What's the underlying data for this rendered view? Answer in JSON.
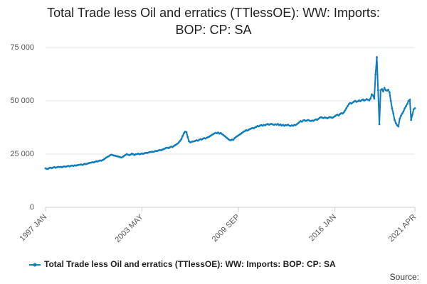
{
  "chart_data": {
    "type": "line",
    "title": "Total Trade less Oil and erratics (TTlessOE): WW: Imports: BOP: CP: SA",
    "source": "Source:",
    "categories": [
      "1997 JAN",
      null,
      null,
      null,
      null,
      null,
      null,
      null,
      null,
      null,
      null,
      null,
      null,
      null,
      null,
      null,
      null,
      null,
      null,
      null,
      null,
      null,
      null,
      null,
      null,
      null,
      null,
      null,
      null,
      null,
      null,
      null,
      null,
      null,
      null,
      null,
      null,
      null,
      null,
      null,
      null,
      null,
      null,
      null,
      null,
      null,
      null,
      null,
      null,
      null,
      null,
      null,
      null,
      null,
      null,
      null,
      null,
      null,
      null,
      null,
      null,
      null,
      null,
      null,
      null,
      null,
      null,
      null,
      null,
      null,
      null,
      null,
      null,
      null,
      null,
      null,
      "2003 MAY",
      null,
      null,
      null,
      null,
      null,
      null,
      null,
      null,
      null,
      null,
      null,
      null,
      null,
      null,
      null,
      null,
      null,
      null,
      null,
      null,
      null,
      null,
      null,
      null,
      null,
      null,
      null,
      null,
      null,
      null,
      null,
      null,
      null,
      null,
      null,
      null,
      null,
      null,
      null,
      null,
      null,
      null,
      null,
      null,
      null,
      null,
      null,
      null,
      null,
      null,
      null,
      null,
      null,
      null,
      null,
      null,
      null,
      null,
      null,
      null,
      null,
      null,
      null,
      null,
      null,
      null,
      null,
      null,
      null,
      null,
      null,
      null,
      null,
      null,
      null,
      "2009 SEP",
      null,
      null,
      null,
      null,
      null,
      null,
      null,
      null,
      null,
      null,
      null,
      null,
      null,
      null,
      null,
      null,
      null,
      null,
      null,
      null,
      null,
      null,
      null,
      null,
      null,
      null,
      null,
      null,
      null,
      null,
      null,
      null,
      null,
      null,
      null,
      null,
      null,
      null,
      null,
      null,
      null,
      null,
      null,
      null,
      null,
      null,
      null,
      null,
      null,
      null,
      null,
      null,
      null,
      null,
      null,
      null,
      null,
      null,
      null,
      null,
      null,
      null,
      null,
      null,
      null,
      null,
      null,
      null,
      null,
      null,
      null,
      null,
      null,
      null,
      null,
      "2016 JAN",
      null,
      null,
      null,
      null,
      null,
      null,
      null,
      null,
      null,
      null,
      null,
      null,
      null,
      null,
      null,
      null,
      null,
      null,
      null,
      null,
      null,
      null,
      null,
      null,
      null,
      null,
      null,
      null,
      null,
      null,
      null,
      null,
      null,
      null,
      null,
      null,
      null,
      null,
      null,
      null,
      null,
      null,
      null,
      null,
      null,
      null,
      null,
      null,
      null,
      null,
      null,
      null,
      null,
      null,
      null,
      null,
      null,
      null,
      null,
      null,
      null,
      null,
      "2021 APR"
    ],
    "series": [
      {
        "name": "Total Trade less Oil and erratics (TTlessOE): WW: Imports: BOP: CP: SA",
        "color": "#0e7dbd",
        "values": [
          18300,
          18100,
          18000,
          18500,
          18600,
          18400,
          18700,
          18900,
          18600,
          18800,
          19000,
          18900,
          19000,
          18800,
          19100,
          19200,
          19000,
          19300,
          19400,
          19200,
          19500,
          19600,
          19400,
          19700,
          19600,
          19800,
          19900,
          20000,
          20100,
          19900,
          20200,
          20400,
          20300,
          20500,
          20700,
          20900,
          21000,
          21200,
          21100,
          21400,
          21600,
          21500,
          21800,
          22000,
          21900,
          22200,
          22500,
          23000,
          23400,
          23800,
          24000,
          24500,
          24700,
          24500,
          24300,
          24200,
          24000,
          23900,
          23700,
          23500,
          23400,
          23800,
          24200,
          24600,
          25000,
          24700,
          24500,
          24800,
          25200,
          24900,
          24600,
          24900,
          25000,
          25200,
          24900,
          25100,
          25300,
          25100,
          25400,
          25600,
          25500,
          25700,
          25900,
          26000,
          26100,
          26000,
          26300,
          26500,
          26400,
          26700,
          26900,
          26800,
          27100,
          27300,
          27600,
          27900,
          28000,
          27800,
          28200,
          28500,
          28300,
          28800,
          29100,
          29500,
          29900,
          30500,
          31200,
          32000,
          33500,
          34800,
          35500,
          35300,
          33000,
          31000,
          30500,
          30700,
          30900,
          31000,
          31200,
          31500,
          31300,
          31700,
          32000,
          31800,
          32200,
          32500,
          32300,
          32700,
          32900,
          33200,
          33600,
          34000,
          34300,
          34700,
          35000,
          34800,
          35100,
          34600,
          34900,
          34400,
          34000,
          33500,
          33000,
          32500,
          32000,
          31600,
          31500,
          31800,
          31700,
          32500,
          33000,
          33400,
          33800,
          34200,
          34600,
          35000,
          35500,
          35800,
          36200,
          36000,
          36400,
          36700,
          37000,
          37300,
          37100,
          37500,
          37800,
          38200,
          38000,
          38400,
          38600,
          38300,
          38700,
          38500,
          38900,
          39100,
          38800,
          39000,
          39200,
          38900,
          38700,
          39000,
          38800,
          39100,
          38600,
          38900,
          38400,
          38700,
          38300,
          38600,
          38500,
          38800,
          38400,
          38200,
          38500,
          38300,
          38700,
          38600,
          39000,
          39500,
          40000,
          40500,
          40200,
          40800,
          40900,
          40600,
          40800,
          41000,
          40700,
          40500,
          40800,
          40600,
          41000,
          41300,
          41100,
          41500,
          42000,
          42300,
          42100,
          41900,
          42200,
          42000,
          41800,
          42100,
          42400,
          42200,
          42000,
          42400,
          42800,
          43200,
          43500,
          43100,
          43800,
          44200,
          44000,
          44600,
          45500,
          46500,
          47500,
          48500,
          49000,
          48700,
          49200,
          49600,
          50000,
          49500,
          49800,
          50200,
          49800,
          50300,
          50600,
          50100,
          50400,
          50800,
          50500,
          50200,
          51000,
          53000,
          52500,
          51000,
          62500,
          70500,
          55000,
          39000,
          55000,
          55500,
          54500,
          56000,
          55000,
          54800,
          55200,
          54000,
          50000,
          46500,
          44000,
          41000,
          39500,
          38500,
          38000,
          41500,
          43000,
          44000,
          45000,
          46500,
          47500,
          48500,
          50000,
          50500,
          41000,
          43500,
          46000,
          46500
        ]
      }
    ],
    "ylim": [
      0,
      75000
    ],
    "yticks": [
      0,
      {
        "value": 25000,
        "label": "25 000"
      },
      {
        "value": 50000,
        "label": "50 000"
      },
      {
        "value": 75000,
        "label": "75 000"
      }
    ],
    "grid": true,
    "legend": "bottom"
  }
}
